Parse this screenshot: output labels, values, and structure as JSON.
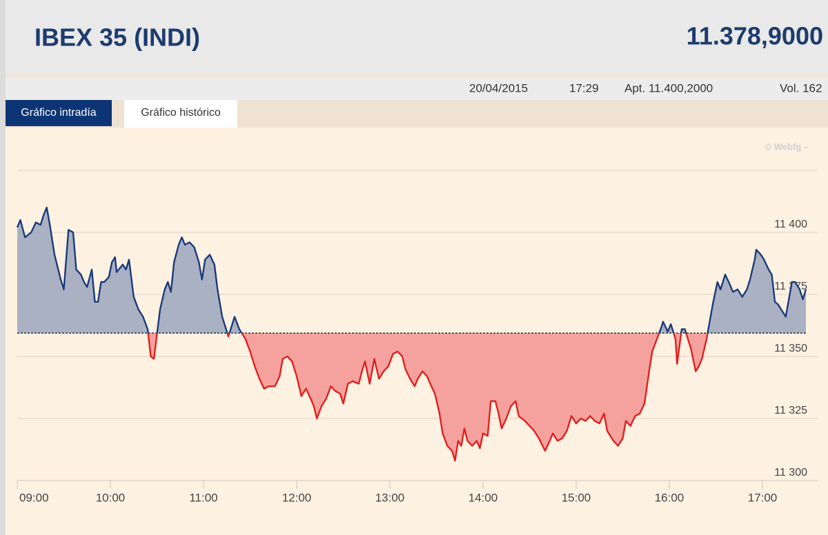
{
  "header": {
    "title": "IBEX 35 (INDI)",
    "price": "11.378,9000",
    "date": "20/04/2015",
    "time": "17:29",
    "open": "Apt. 11.400,2000",
    "volume": "Vol. 162"
  },
  "tabs": [
    "Gráfico intradía",
    "Gráfico histórico"
  ],
  "chart_data": {
    "type": "line",
    "credit": "© Webfg –",
    "x": [
      "09:00",
      "09:02",
      "09:05",
      "09:09",
      "09:12",
      "09:15",
      "09:17",
      "09:19",
      "09:21",
      "09:24",
      "09:28",
      "09:30",
      "09:33",
      "09:36",
      "09:38",
      "09:41",
      "09:43",
      "09:45",
      "09:48",
      "09:50",
      "09:52",
      "09:54",
      "09:56",
      "09:59",
      "10:01",
      "10:03",
      "10:04",
      "10:08",
      "10:10",
      "10:12",
      "10:15",
      "10:18",
      "10:21",
      "10:24",
      "10:26",
      "10:28",
      "10:30",
      "10:32",
      "10:35",
      "10:37",
      "10:39",
      "10:41",
      "10:44",
      "10:46",
      "10:48",
      "10:51",
      "10:54",
      "10:57",
      "10:59",
      "11:01",
      "11:04",
      "11:07",
      "11:09",
      "11:12",
      "11:16",
      "11:18",
      "11:20",
      "11:23",
      "11:27",
      "11:30",
      "11:33",
      "11:36",
      "11:39",
      "11:42",
      "11:46",
      "11:49",
      "11:51",
      "11:54",
      "11:57",
      "12:00",
      "12:03",
      "12:06",
      "12:09",
      "12:11",
      "12:13",
      "12:16",
      "12:19",
      "12:22",
      "12:25",
      "12:28",
      "12:30",
      "12:33",
      "12:36",
      "12:40",
      "12:42",
      "12:44",
      "12:47",
      "12:50",
      "12:53",
      "12:56",
      "12:59",
      "13:02",
      "13:05",
      "13:08",
      "13:10",
      "13:13",
      "13:16",
      "13:18",
      "13:21",
      "13:24",
      "13:26",
      "13:29",
      "13:32",
      "13:34",
      "13:37",
      "13:40",
      "13:42",
      "13:44",
      "13:46",
      "13:48",
      "13:50",
      "13:53",
      "13:56",
      "13:58",
      "14:00",
      "14:03",
      "14:05",
      "14:08",
      "14:10",
      "14:12",
      "14:15",
      "14:18",
      "14:21",
      "14:23",
      "14:27",
      "14:30",
      "14:33",
      "14:36",
      "14:40",
      "14:43",
      "14:45",
      "14:48",
      "14:51",
      "14:54",
      "14:57",
      "15:00",
      "15:03",
      "15:06",
      "15:09",
      "15:12",
      "15:15",
      "15:18",
      "15:20",
      "15:24",
      "15:27",
      "15:30",
      "15:32",
      "15:35",
      "15:38",
      "15:41",
      "15:44",
      "15:47",
      "15:49",
      "15:52",
      "15:55",
      "15:56",
      "15:59",
      "16:01",
      "16:04",
      "16:05",
      "16:08",
      "16:10",
      "16:12",
      "16:14",
      "16:17",
      "16:19",
      "16:21",
      "16:24",
      "16:26",
      "16:28",
      "16:31",
      "16:33",
      "16:36",
      "16:39",
      "16:41",
      "16:44",
      "16:47",
      "16:50",
      "16:52",
      "16:55",
      "16:56",
      "16:59",
      "17:01",
      "17:04",
      "17:06",
      "17:08",
      "17:10",
      "17:12",
      "17:15",
      "17:17",
      "17:19",
      "17:21",
      "17:24",
      "17:26",
      "17:28"
    ],
    "series": [
      {
        "values": [
          11402,
          11405,
          11398,
          11400,
          11404,
          11403,
          11407,
          11410,
          11403,
          11391,
          11381,
          11377,
          11401,
          11400,
          11385,
          11383,
          11380,
          11378,
          11385,
          11372,
          11372,
          11380,
          11380,
          11382,
          11388,
          11390,
          11384,
          11387,
          11385,
          11389,
          11374,
          11369,
          11366,
          11361,
          11350,
          11349,
          11359,
          11369,
          11377,
          11380,
          11376,
          11388,
          11395,
          11398,
          11395,
          11396,
          11394,
          11388,
          11381,
          11389,
          11391,
          11387,
          11377,
          11366,
          11358,
          11362,
          11366,
          11361,
          11357,
          11352,
          11346,
          11341,
          11337,
          11338,
          11338,
          11342,
          11349,
          11350,
          11348,
          11342,
          11334,
          11337,
          11333,
          11330,
          11325,
          11330,
          11333,
          11338,
          11336,
          11335,
          11331,
          11339,
          11340,
          11339,
          11344,
          11348,
          11339,
          11349,
          11341,
          11344,
          11346,
          11351,
          11352,
          11350,
          11345,
          11341,
          11338,
          11341,
          11344,
          11342,
          11339,
          11335,
          11327,
          11319,
          11314,
          11312,
          11308,
          11316,
          11314,
          11321,
          11316,
          11314,
          11316,
          11313,
          11319,
          11318,
          11332,
          11332,
          11327,
          11321,
          11325,
          11330,
          11332,
          11326,
          11324,
          11322,
          11320,
          11317,
          11312,
          11316,
          11319,
          11316,
          11317,
          11320,
          11326,
          11323,
          11325,
          11324,
          11326,
          11324,
          11323,
          11327,
          11320,
          11316,
          11314,
          11317,
          11324,
          11322,
          11326,
          11327,
          11331,
          11344,
          11352,
          11357,
          11362,
          11364,
          11360,
          11363,
          11357,
          11347,
          11361,
          11361,
          11357,
          11353,
          11344,
          11346,
          11349,
          11357,
          11364,
          11371,
          11380,
          11377,
          11383,
          11379,
          11376,
          11377,
          11374,
          11377,
          11381,
          11389,
          11393,
          11391,
          11389,
          11385,
          11383,
          11372,
          11371,
          11369,
          11366,
          11373,
          11380,
          11380,
          11377,
          11373,
          11377
        ],
        "color": "#1b3a7a",
        "color_below": "#e0201e",
        "fill": "#a9b1c3",
        "fill_below": "#f5a29f"
      }
    ],
    "reference": 11359.4,
    "xlim": [
      "09:00",
      "17:30"
    ],
    "xticks": [
      "09:00",
      "10:00",
      "11:00",
      "12:00",
      "13:00",
      "14:00",
      "15:00",
      "16:00",
      "17:00"
    ],
    "ylim": [
      11300,
      11425
    ],
    "yticks": [
      {
        "value": 11300,
        "label": "11 300"
      },
      {
        "value": 11325,
        "label": "11 325"
      },
      {
        "value": 11350,
        "label": "11 350"
      },
      {
        "value": 11375,
        "label": "11 375"
      },
      {
        "value": 11400,
        "label": "11 400"
      }
    ],
    "grid": true
  }
}
